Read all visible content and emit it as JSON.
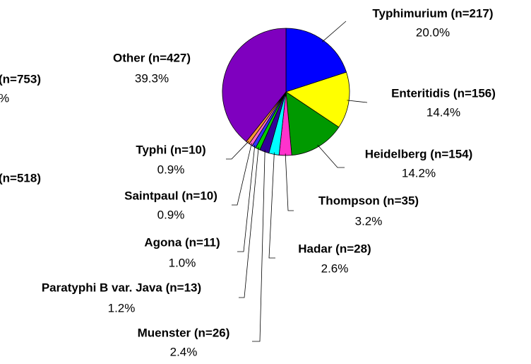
{
  "chart_data": {
    "type": "pie",
    "categories": [
      "Typhimurium (n=217)",
      "Enteritidis (n=156)",
      "Heidelberg (n=154)",
      "Thompson (n=35)",
      "Hadar (n=28)",
      "Muenster (n=26)",
      "Paratyphi B var. Java (n=13)",
      "Agona (n=11)",
      "Saintpaul (n=10)",
      "Typhi (n=10)",
      "Other (n=427)"
    ],
    "values": [
      20.0,
      14.4,
      14.2,
      3.2,
      2.6,
      2.4,
      1.2,
      1.0,
      0.9,
      0.9,
      39.3
    ],
    "value_labels": [
      "20.0%",
      "14.4%",
      "14.2%",
      "3.2%",
      "2.6%",
      "2.4%",
      "1.2%",
      "1.0%",
      "0.9%",
      "0.9%",
      "39.3%"
    ],
    "colors": [
      "#0000ff",
      "#ffff00",
      "#009900",
      "#ff33cc",
      "#00ffff",
      "#330099",
      "#00cc00",
      "#3333ff",
      "#ff66cc",
      "#ff9933",
      "#7f00bf"
    ],
    "annotations": [
      "(n=753)",
      "%",
      "(n=518)"
    ]
  }
}
